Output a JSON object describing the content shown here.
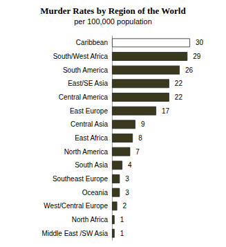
{
  "chart_data": {
    "type": "bar",
    "orientation": "horizontal",
    "title": "Murder Rates by Region of the World",
    "subtitle": "per 100,000 population",
    "categories": [
      "Caribbean",
      "South/West Africa",
      "South America",
      "East/SE Asia",
      "Central America",
      "East Europe",
      "Central Asia",
      "East Africa",
      "North America",
      "South Asia",
      "Southeast Europe",
      "Oceania",
      "West/Central Europe",
      "North Africa",
      "Middle East /SW Asia"
    ],
    "values": [
      30,
      29,
      26,
      22,
      22,
      17,
      9,
      8,
      7,
      4,
      3,
      3,
      2,
      1,
      1
    ],
    "colors": [
      "#ffffff",
      "#3b391d",
      "#3b391d",
      "#3b391d",
      "#3b391d",
      "#3b391d",
      "#3b391d",
      "#3b391d",
      "#3b391d",
      "#3b391d",
      "#3b391d",
      "#3b391d",
      "#3b391d",
      "#3b391d",
      "#3b391d"
    ],
    "xlim": [
      0,
      30
    ],
    "data_labels": true,
    "tick_labels": "y",
    "grid": false
  }
}
